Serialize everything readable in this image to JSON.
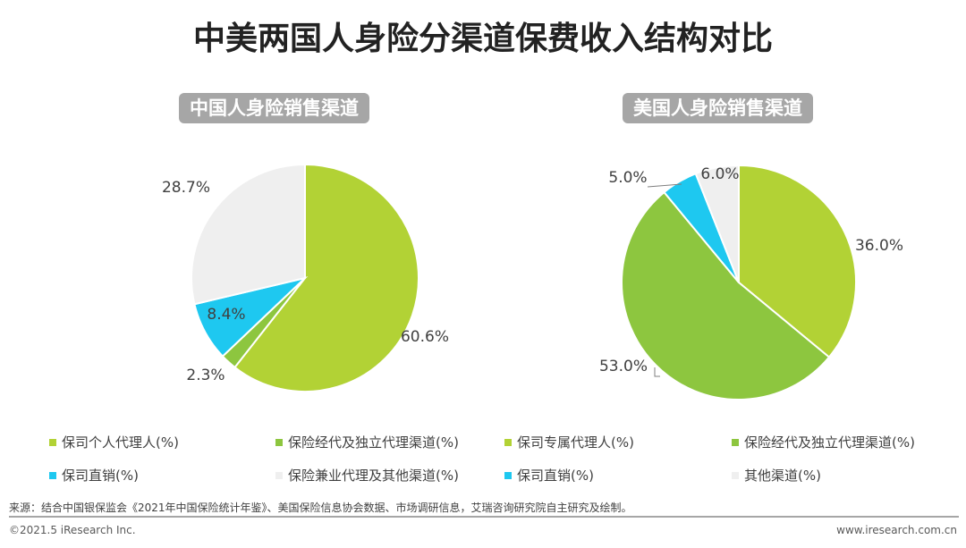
{
  "title": "中美两国人身险分渠道保费收入结构对比",
  "colors": {
    "lime": "#b2d235",
    "green": "#8dc63f",
    "cyan": "#1ec8f0",
    "gray": "#efefef"
  },
  "chart_data": [
    {
      "type": "pie",
      "title": "中国人身险销售渠道",
      "slices": [
        {
          "name": "保司个人代理人(%)",
          "value": 60.6,
          "label": "60.6%",
          "color": "#b2d235"
        },
        {
          "name": "保险经代及独立代理渠道(%)",
          "value": 2.3,
          "label": "2.3%",
          "color": "#8dc63f"
        },
        {
          "name": "保司直销(%)",
          "value": 8.4,
          "label": "8.4%",
          "color": "#1ec8f0"
        },
        {
          "name": "保险兼业代理及其他渠道(%)",
          "value": 28.7,
          "label": "28.7%",
          "color": "#efefef"
        }
      ]
    },
    {
      "type": "pie",
      "title": "美国人身险销售渠道",
      "slices": [
        {
          "name": "保司专属代理人(%)",
          "value": 36.0,
          "label": "36.0%",
          "color": "#b2d235"
        },
        {
          "name": "保险经代及独立代理渠道(%)",
          "value": 53.0,
          "label": "53.0%",
          "color": "#8dc63f"
        },
        {
          "name": "保司直销(%)",
          "value": 5.0,
          "label": "5.0%",
          "color": "#1ec8f0"
        },
        {
          "name": "其他渠道(%)",
          "value": 6.0,
          "label": "6.0%",
          "color": "#efefef"
        }
      ]
    }
  ],
  "source": "来源：结合中国银保监会《2021年中国保险统计年鉴》、美国保险信息协会数据、市场调研信息，艾瑞咨询研究院自主研究及绘制。",
  "copyright": "©2021.5 iResearch Inc.",
  "website": "www.iresearch.com.cn"
}
